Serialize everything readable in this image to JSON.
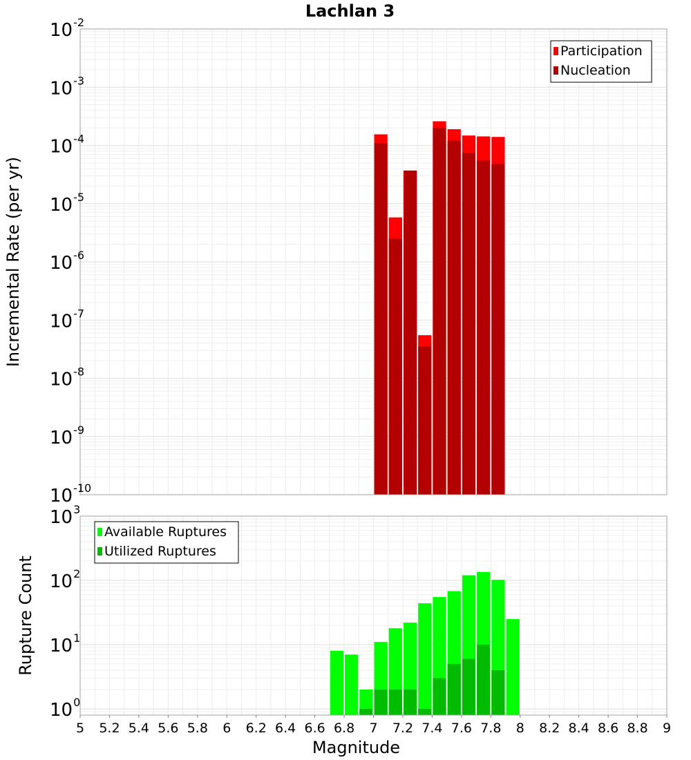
{
  "chart_data": [
    {
      "type": "bar",
      "title": "Lachlan 3",
      "ylabel": "Incremental Rate (per yr)",
      "xlabel": "",
      "y_scale": "log",
      "ylim": [
        1e-10,
        0.01
      ],
      "xlim": [
        5,
        9
      ],
      "bin_width": 0.1,
      "y_tick_exponents": [
        -10,
        -9,
        -8,
        -7,
        -6,
        -5,
        -4,
        -3,
        -2
      ],
      "legend_position": "top-right",
      "grid": true,
      "series": [
        {
          "name": "Participation",
          "color": "#ff0000",
          "x": [
            7.05,
            7.15,
            7.25,
            7.35,
            7.45,
            7.55,
            7.65,
            7.75,
            7.85
          ],
          "values": [
            0.000155,
            5.8e-06,
            3.7e-05,
            5.5e-08,
            0.00026,
            0.00019,
            0.000148,
            0.000143,
            0.00014
          ]
        },
        {
          "name": "Nucleation",
          "color": "#b30000",
          "x": [
            7.05,
            7.15,
            7.25,
            7.35,
            7.45,
            7.55,
            7.65,
            7.75,
            7.85
          ],
          "values": [
            0.00011,
            2.5e-06,
            3.7e-05,
            3.5e-08,
            0.0002,
            0.00012,
            7.5e-05,
            5.5e-05,
            4.8e-05
          ]
        }
      ]
    },
    {
      "type": "bar",
      "ylabel": "Rupture Count",
      "xlabel": "Magnitude",
      "y_scale": "log",
      "ylim": [
        0.8,
        1000
      ],
      "xlim": [
        5,
        9
      ],
      "bin_width": 0.1,
      "y_tick_exponents": [
        0,
        1,
        2,
        3
      ],
      "x_ticks": [
        "5",
        "5.2",
        "5.4",
        "5.6",
        "5.8",
        "6",
        "6.2",
        "6.4",
        "6.6",
        "6.8",
        "7",
        "7.2",
        "7.4",
        "7.6",
        "7.8",
        "8",
        "8.2",
        "8.4",
        "8.6",
        "8.8",
        "9"
      ],
      "legend_position": "top-left",
      "grid": true,
      "series": [
        {
          "name": "Available Ruptures",
          "color": "#00ff00",
          "x": [
            6.75,
            6.85,
            6.95,
            7.05,
            7.15,
            7.25,
            7.35,
            7.45,
            7.55,
            7.65,
            7.75,
            7.85,
            7.95
          ],
          "values": [
            8,
            7,
            2,
            11,
            18,
            22,
            44,
            55,
            68,
            120,
            135,
            102,
            25
          ]
        },
        {
          "name": "Utilized Ruptures",
          "color": "#00bb00",
          "x": [
            6.95,
            7.05,
            7.15,
            7.25,
            7.35,
            7.45,
            7.55,
            7.65,
            7.75,
            7.85
          ],
          "values": [
            1,
            2,
            2,
            2,
            1,
            3,
            5,
            6,
            10,
            4
          ]
        }
      ]
    }
  ]
}
